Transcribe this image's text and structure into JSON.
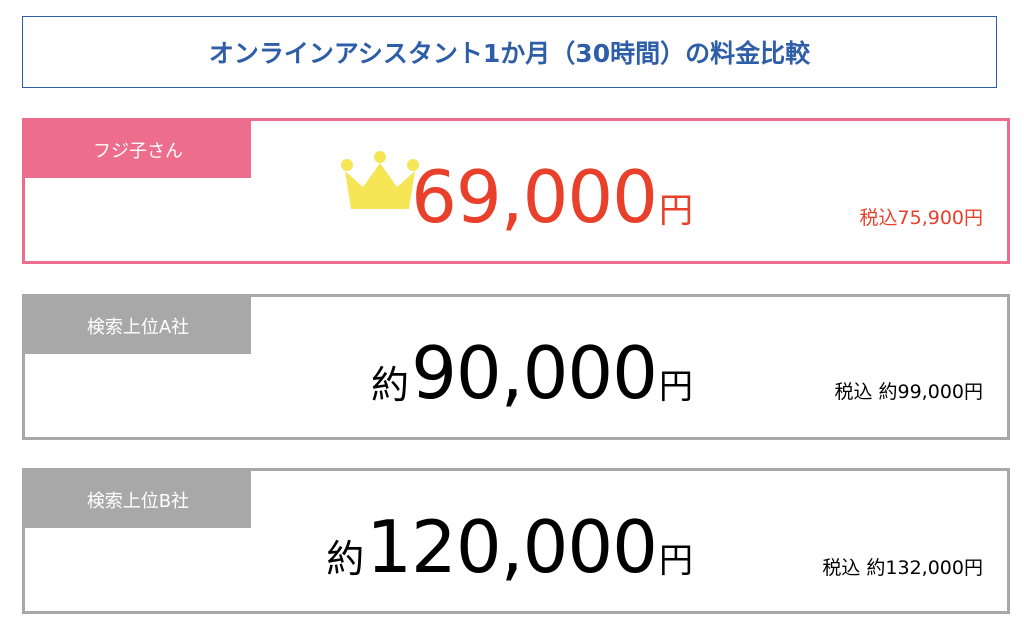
{
  "title": "オンラインアシスタント1か月（30時間）の料金比較",
  "icons": {
    "crown": "crown-icon"
  },
  "colors": {
    "title_blue": "#2f5ea8",
    "featured_pink": "#ec6e8c",
    "featured_price_red": "#e8402b",
    "crown_yellow": "#f6e655",
    "standard_gray": "#a8a8a8"
  },
  "plans": [
    {
      "label": "フジ子さん",
      "prefix": "",
      "price": "69,000",
      "unit": "円",
      "tax_included": "税込75,900円",
      "featured": true
    },
    {
      "label": "検索上位A社",
      "prefix": "約",
      "price": "90,000",
      "unit": "円",
      "tax_included": "税込 約99,000円",
      "featured": false
    },
    {
      "label": "検索上位B社",
      "prefix": "約",
      "price": "120,000",
      "unit": "円",
      "tax_included": "税込 約132,000円",
      "featured": false
    }
  ]
}
